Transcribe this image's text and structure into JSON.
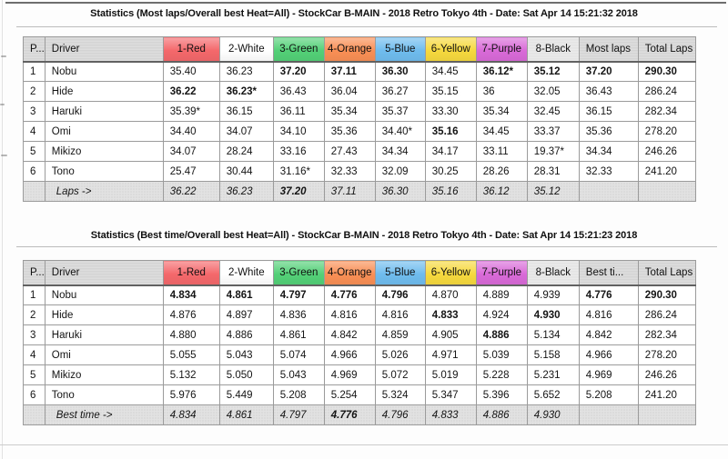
{
  "palette": {
    "header_red": "#f4686b",
    "header_green": "#53d077",
    "header_orange": "#f98f55",
    "header_blue": "#6fbcee",
    "header_yellow": "#f6d93e",
    "header_purple": "#d96ad8",
    "header_gray": "#d7d7d7",
    "cell_best_green": "#4fce5d",
    "cell_good_green": "#91dc95",
    "cell_pale_green": "#e7f4ea",
    "cell_orange": "#f8c856",
    "summary_gray": "#e2e2e2"
  },
  "tables": [
    {
      "name": "most-laps",
      "title": "Statistics (Most laps/Overall best Heat=All) - StockCar B-MAIN - 2018 Retro Tokyo 4th - Date: Sat Apr 14 15:21:32 2018",
      "headers": [
        {
          "label": "P...",
          "c": "hgray"
        },
        {
          "label": "Driver",
          "c": "hgray"
        },
        {
          "label": "1-Red",
          "c": "hred"
        },
        {
          "label": "2-White",
          "c": "hwhite"
        },
        {
          "label": "3-Green",
          "c": "hgreen"
        },
        {
          "label": "4-Orange",
          "c": "horange"
        },
        {
          "label": "5-Blue",
          "c": "hblue"
        },
        {
          "label": "6-Yellow",
          "c": "hyellow"
        },
        {
          "label": "7-Purple",
          "c": "hpurple"
        },
        {
          "label": "8-Black",
          "c": "hblack"
        },
        {
          "label": "Most laps",
          "c": "hgray"
        },
        {
          "label": "Total Laps",
          "c": "hgray",
          "b": true
        }
      ],
      "rows": [
        {
          "pos": "1",
          "driver": "Nobu",
          "heats": [
            {
              "v": "35.40",
              "c": "good"
            },
            {
              "v": "36.23",
              "c": "good"
            },
            {
              "v": "37.20",
              "c": "best",
              "b": true
            },
            {
              "v": "37.11",
              "c": "best",
              "b": true
            },
            {
              "v": "36.30",
              "c": "best",
              "b": true
            },
            {
              "v": "34.45",
              "c": "pale"
            },
            {
              "v": "36.12*",
              "c": "best",
              "b": true
            },
            {
              "v": "35.12",
              "c": "best",
              "b": true
            }
          ],
          "agg": {
            "v": "37.20",
            "b": true
          },
          "total": {
            "v": "290.30",
            "b": true
          }
        },
        {
          "pos": "2",
          "driver": "Hide",
          "heats": [
            {
              "v": "36.22",
              "c": "best",
              "b": true
            },
            {
              "v": "36.23*",
              "c": "best",
              "b": true
            },
            {
              "v": "36.43",
              "c": "good"
            },
            {
              "v": "36.04",
              "c": "good"
            },
            {
              "v": "36.27",
              "c": "good"
            },
            {
              "v": "35.15",
              "c": "good"
            },
            {
              "v": "36",
              "c": "good"
            },
            {
              "v": "32.05",
              "c": "orange"
            }
          ],
          "agg": {
            "v": "36.43"
          },
          "total": {
            "v": "286.24"
          }
        },
        {
          "pos": "3",
          "driver": "Haruki",
          "heats": [
            {
              "v": "35.39*",
              "c": "pale"
            },
            {
              "v": "36.15",
              "c": "pale"
            },
            {
              "v": "36.11",
              "c": "pale"
            },
            {
              "v": "35.34",
              "c": "orange"
            },
            {
              "v": "35.37",
              "c": "pale"
            },
            {
              "v": "33.30",
              "c": "orange"
            },
            {
              "v": "35.34",
              "c": "pale"
            },
            {
              "v": "32.45",
              "c": "lite"
            }
          ],
          "agg": {
            "v": "36.15"
          },
          "total": {
            "v": "282.34"
          }
        },
        {
          "pos": "4",
          "driver": "Omi",
          "heats": [
            {
              "v": "34.40",
              "c": "orange"
            },
            {
              "v": "34.07",
              "c": "orange"
            },
            {
              "v": "34.10",
              "c": "orange"
            },
            {
              "v": "35.36",
              "c": "pale"
            },
            {
              "v": "34.40*",
              "c": "orange"
            },
            {
              "v": "35.16",
              "c": "best",
              "b": true
            },
            {
              "v": "34.45",
              "c": "orange"
            },
            {
              "v": "33.37",
              "c": "lite"
            }
          ],
          "agg": {
            "v": "35.36"
          },
          "total": {
            "v": "278.20"
          }
        },
        {
          "pos": "5",
          "driver": "Mikizo",
          "heats": [
            {
              "v": "34.07",
              "c": "orange"
            },
            {
              "v": "28.24",
              "c": "orange"
            },
            {
              "v": "33.16",
              "c": "orange"
            },
            {
              "v": "27.43",
              "c": "orange"
            },
            {
              "v": "34.34",
              "c": "orange"
            },
            {
              "v": "34.17",
              "c": "orange"
            },
            {
              "v": "33.11",
              "c": "orange"
            },
            {
              "v": "19.37*",
              "c": "orange"
            }
          ],
          "agg": {
            "v": "34.34"
          },
          "total": {
            "v": "246.26"
          }
        },
        {
          "pos": "6",
          "driver": "Tono",
          "heats": [
            {
              "v": "25.47",
              "c": "orange"
            },
            {
              "v": "30.44",
              "c": "orange"
            },
            {
              "v": "31.16*",
              "c": "orange"
            },
            {
              "v": "32.33",
              "c": "orange"
            },
            {
              "v": "32.09",
              "c": "orange"
            },
            {
              "v": "30.25",
              "c": "orange"
            },
            {
              "v": "28.26",
              "c": "orange"
            },
            {
              "v": "28.31",
              "c": "orange"
            }
          ],
          "agg": {
            "v": "32.33"
          },
          "total": {
            "v": "241.20"
          }
        }
      ],
      "summary": {
        "label": "Laps ->",
        "values": [
          {
            "v": "36.22"
          },
          {
            "v": "36.23"
          },
          {
            "v": "37.20",
            "b": true
          },
          {
            "v": "37.11"
          },
          {
            "v": "36.30"
          },
          {
            "v": "35.16"
          },
          {
            "v": "36.12"
          },
          {
            "v": "35.12"
          }
        ]
      }
    },
    {
      "name": "best-time",
      "title": "Statistics (Best time/Overall best Heat=All) - StockCar B-MAIN - 2018 Retro Tokyo 4th - Date: Sat Apr 14 15:21:23 2018",
      "headers": [
        {
          "label": "P...",
          "c": "hgray"
        },
        {
          "label": "Driver",
          "c": "hgray"
        },
        {
          "label": "1-Red",
          "c": "hred"
        },
        {
          "label": "2-White",
          "c": "hwhite"
        },
        {
          "label": "3-Green",
          "c": "hgreen"
        },
        {
          "label": "4-Orange",
          "c": "horange"
        },
        {
          "label": "5-Blue",
          "c": "hblue"
        },
        {
          "label": "6-Yellow",
          "c": "hyellow"
        },
        {
          "label": "7-Purple",
          "c": "hpurple"
        },
        {
          "label": "8-Black",
          "c": "hblack"
        },
        {
          "label": "Best ti...",
          "c": "hgray",
          "b": true
        },
        {
          "label": "Total Laps",
          "c": "hgray"
        }
      ],
      "rows": [
        {
          "pos": "1",
          "driver": "Nobu",
          "heats": [
            {
              "v": "4.834",
              "c": "best",
              "b": true
            },
            {
              "v": "4.861",
              "c": "best",
              "b": true
            },
            {
              "v": "4.797",
              "c": "best",
              "b": true
            },
            {
              "v": "4.776",
              "c": "best",
              "b": true
            },
            {
              "v": "4.796",
              "c": "best",
              "b": true
            },
            {
              "v": "4.870",
              "c": "good"
            },
            {
              "v": "4.889",
              "c": "good"
            },
            {
              "v": "4.939",
              "c": "good"
            }
          ],
          "agg": {
            "v": "4.776",
            "b": true
          },
          "total": {
            "v": "290.30",
            "b": true
          }
        },
        {
          "pos": "2",
          "driver": "Hide",
          "heats": [
            {
              "v": "4.876",
              "c": "good"
            },
            {
              "v": "4.897",
              "c": "pale"
            },
            {
              "v": "4.836",
              "c": "good"
            },
            {
              "v": "4.816",
              "c": "good"
            },
            {
              "v": "4.816",
              "c": "good"
            },
            {
              "v": "4.833",
              "c": "best",
              "b": true
            },
            {
              "v": "4.924",
              "c": "pale"
            },
            {
              "v": "4.930",
              "c": "best",
              "b": true
            }
          ],
          "agg": {
            "v": "4.816"
          },
          "total": {
            "v": "286.24"
          }
        },
        {
          "pos": "3",
          "driver": "Haruki",
          "heats": [
            {
              "v": "4.880",
              "c": "pale"
            },
            {
              "v": "4.886",
              "c": "good"
            },
            {
              "v": "4.861",
              "c": "pale"
            },
            {
              "v": "4.842",
              "c": "pale"
            },
            {
              "v": "4.859",
              "c": "pale"
            },
            {
              "v": "4.905",
              "c": "pale"
            },
            {
              "v": "4.886",
              "c": "best",
              "b": true
            },
            {
              "v": "5.134",
              "c": "white"
            }
          ],
          "agg": {
            "v": "4.842"
          },
          "total": {
            "v": "282.34"
          }
        },
        {
          "pos": "4",
          "driver": "Omi",
          "heats": [
            {
              "v": "5.055",
              "c": "orange"
            },
            {
              "v": "5.043",
              "c": "orange"
            },
            {
              "v": "5.074",
              "c": "orange"
            },
            {
              "v": "4.966",
              "c": "orange"
            },
            {
              "v": "5.026",
              "c": "orange"
            },
            {
              "v": "4.971",
              "c": "orange"
            },
            {
              "v": "5.039",
              "c": "orange"
            },
            {
              "v": "5.158",
              "c": "orange"
            }
          ],
          "agg": {
            "v": "4.966"
          },
          "total": {
            "v": "278.20"
          }
        },
        {
          "pos": "5",
          "driver": "Mikizo",
          "heats": [
            {
              "v": "5.132",
              "c": "orange"
            },
            {
              "v": "5.050",
              "c": "orange"
            },
            {
              "v": "5.043",
              "c": "orange"
            },
            {
              "v": "4.969",
              "c": "orange"
            },
            {
              "v": "5.072",
              "c": "orange"
            },
            {
              "v": "5.019",
              "c": "orange"
            },
            {
              "v": "5.228",
              "c": "orange"
            },
            {
              "v": "5.231",
              "c": "orange"
            }
          ],
          "agg": {
            "v": "4.969"
          },
          "total": {
            "v": "246.26"
          }
        },
        {
          "pos": "6",
          "driver": "Tono",
          "heats": [
            {
              "v": "5.976",
              "c": "orange"
            },
            {
              "v": "5.449",
              "c": "orange"
            },
            {
              "v": "5.208",
              "c": "orange"
            },
            {
              "v": "5.254",
              "c": "orange"
            },
            {
              "v": "5.324",
              "c": "orange"
            },
            {
              "v": "5.347",
              "c": "orange"
            },
            {
              "v": "5.396",
              "c": "orange"
            },
            {
              "v": "5.652",
              "c": "orange"
            }
          ],
          "agg": {
            "v": "5.208"
          },
          "total": {
            "v": "241.20"
          }
        }
      ],
      "summary": {
        "label": "Best time ->",
        "values": [
          {
            "v": "4.834"
          },
          {
            "v": "4.861"
          },
          {
            "v": "4.797"
          },
          {
            "v": "4.776",
            "b": true
          },
          {
            "v": "4.796"
          },
          {
            "v": "4.833"
          },
          {
            "v": "4.886"
          },
          {
            "v": "4.930"
          }
        ]
      }
    }
  ]
}
